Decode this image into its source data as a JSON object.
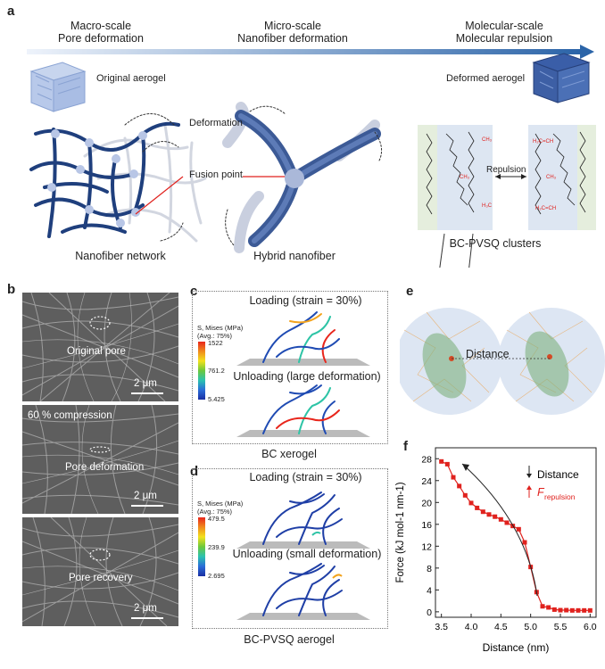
{
  "panel_labels": {
    "a": "a",
    "b": "b",
    "c": "c",
    "d": "d",
    "e": "e",
    "f": "f"
  },
  "panel_a": {
    "scales": [
      {
        "line1": "Macro-scale",
        "line2": "Pore deformation"
      },
      {
        "line1": "Micro-scale",
        "line2": "Nanofiber deformation"
      },
      {
        "line1": "Molecular-scale",
        "line2": "Molecular repulsion"
      }
    ],
    "original_aerogel": "Original aerogel",
    "deformed_aerogel": "Deformed aerogel",
    "deformation": "Deformation",
    "fusion_point": "Fusion point",
    "repulsion": "Repulsion",
    "nanofiber_network": "Nanofiber network",
    "hybrid_nanofiber": "Hybrid nanofiber",
    "bc_pvsq_clusters": "BC-PVSQ clusters"
  },
  "panel_b": {
    "images": [
      {
        "label": "Original pore",
        "scale": "2 μm",
        "note": ""
      },
      {
        "label": "Pore deformation",
        "scale": "2 μm",
        "note": "60 % compression"
      },
      {
        "label": "Pore recovery",
        "scale": "2 μm",
        "note": ""
      }
    ]
  },
  "panel_c": {
    "loading": "Loading (strain = 30%)",
    "unloading": "Unloading (large deformation)",
    "legend_title1": "S, Mises (MPa)",
    "legend_title2": "(Avg.: 75%)",
    "legend_max": "1522",
    "legend_mid": "761.2",
    "legend_min": "5.425",
    "caption": "BC xerogel"
  },
  "panel_d": {
    "loading": "Loading (strain = 30%)",
    "unloading": "Unloading (small deformation)",
    "legend_title1": "S, Mises (MPa)",
    "legend_title2": "(Avg.: 75%)",
    "legend_max": "479.5",
    "legend_mid": "239.9",
    "legend_min": "2.695",
    "caption": "BC-PVSQ aerogel"
  },
  "panel_e": {
    "distance": "Distance"
  },
  "chart_data": {
    "type": "line",
    "xlabel": "Distance (nm)",
    "ylabel": "Force (kJ mol-1 nm-1)",
    "xlim": [
      3.4,
      6.1
    ],
    "ylim": [
      -1,
      30
    ],
    "xticks": [
      "3.5",
      "4.0",
      "4.5",
      "5.0",
      "5.5",
      "6.0"
    ],
    "yticks": [
      "0",
      "4",
      "8",
      "12",
      "16",
      "20",
      "24",
      "28"
    ],
    "legend": [
      "Distance",
      "F",
      "repulsion"
    ],
    "x": [
      3.5,
      3.6,
      3.7,
      3.8,
      3.9,
      4.0,
      4.1,
      4.2,
      4.3,
      4.4,
      4.5,
      4.6,
      4.7,
      4.8,
      4.9,
      5.0,
      5.1,
      5.2,
      5.3,
      5.4,
      5.5,
      5.6,
      5.7,
      5.8,
      5.9,
      6.0
    ],
    "values": [
      27.5,
      27.0,
      24.6,
      23.0,
      21.3,
      19.9,
      19.0,
      18.3,
      17.8,
      17.4,
      16.9,
      16.3,
      15.7,
      15.1,
      12.7,
      8.2,
      3.6,
      1.0,
      0.8,
      0.4,
      0.3,
      0.3,
      0.25,
      0.25,
      0.25,
      0.25
    ],
    "color": "#e0221e"
  }
}
